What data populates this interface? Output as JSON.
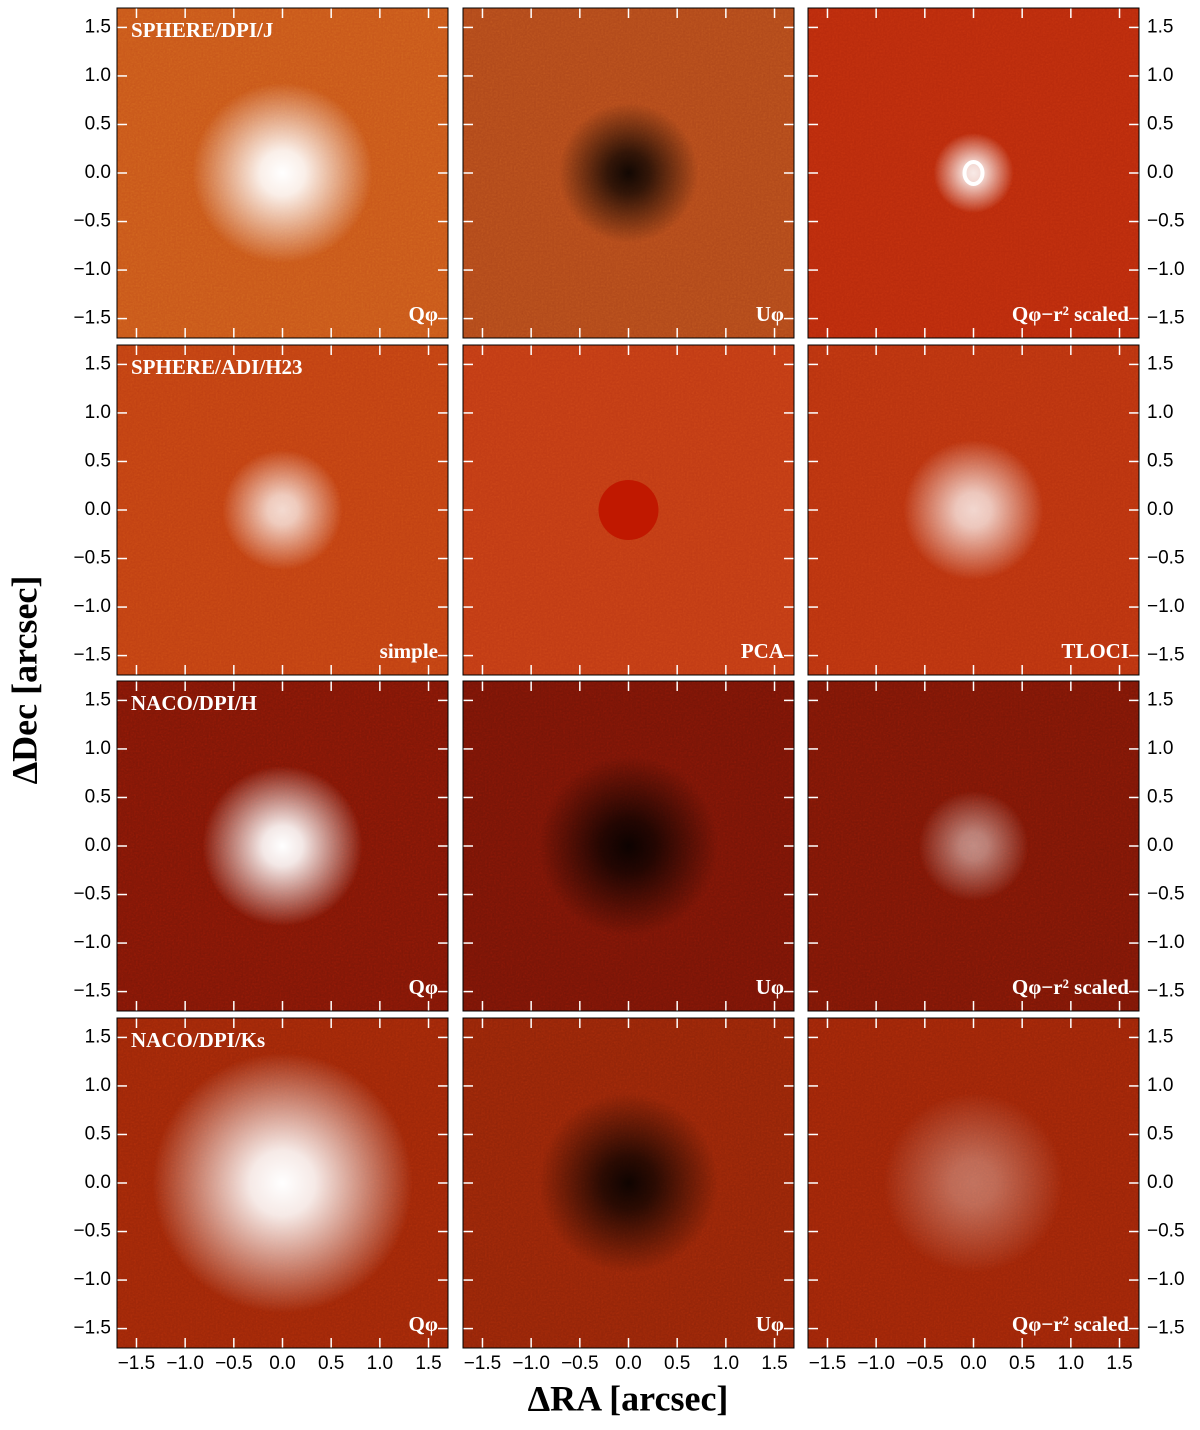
{
  "figure": {
    "x_label": "ΔRA [arcsec]",
    "y_label": "ΔDec [arcsec]",
    "xlim": [
      -1.7,
      1.7
    ],
    "ylim": [
      -1.7,
      1.7
    ],
    "xticks": [
      {
        "value": -1.5,
        "label": "−1.5"
      },
      {
        "value": -1.0,
        "label": "−1.0"
      },
      {
        "value": -0.5,
        "label": "−0.5"
      },
      {
        "value": 0,
        "label": "0.0"
      },
      {
        "value": 0.5,
        "label": "0.5"
      },
      {
        "value": 1.0,
        "label": "1.0"
      },
      {
        "value": 1.5,
        "label": "1.5"
      }
    ],
    "yticks": [
      {
        "value": -1.5,
        "label": "−1.5"
      },
      {
        "value": -1.0,
        "label": "−1.0"
      },
      {
        "value": -0.5,
        "label": "−0.5"
      },
      {
        "value": 0,
        "label": "0.0"
      },
      {
        "value": 0.5,
        "label": "0.5"
      },
      {
        "value": 1.0,
        "label": "1.0"
      },
      {
        "value": 1.5,
        "label": "1.5"
      }
    ],
    "rows": [
      {
        "label": "SPHERE/DPI/J",
        "panels": [
          "Qφ",
          "Uφ",
          "Qφ−r² scaled"
        ]
      },
      {
        "label": "SPHERE/ADI/H23",
        "panels": [
          "simple",
          "PCA",
          "TLOCI"
        ]
      },
      {
        "label": "NACO/DPI/H",
        "panels": [
          "Qφ",
          "Uφ",
          "Qφ−r² scaled"
        ]
      },
      {
        "label": "NACO/DPI/Ks",
        "panels": [
          "Qφ",
          "Uφ",
          "Qφ−r² scaled"
        ]
      }
    ]
  }
}
